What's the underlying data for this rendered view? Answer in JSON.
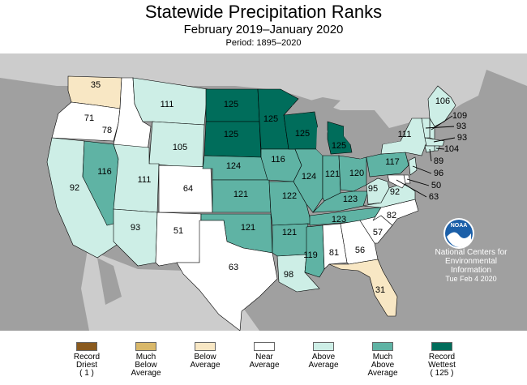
{
  "title": "Statewide Precipitation Ranks",
  "subtitle": "February 2019–January 2020",
  "period": "Period: 1895–2020",
  "credit": {
    "line1": "National Centers for",
    "line2": "Environmental",
    "line3": "Information",
    "date": "Tue Feb  4 2020",
    "logo_text": "NOAA",
    "logo_icon": "noaa-logo"
  },
  "colors": {
    "record_driest": "#8a5a1e",
    "much_below": "#d9b86a",
    "below": "#f8e7c4",
    "near": "#ffffff",
    "above": "#cdeee6",
    "much_above": "#5fb3a4",
    "record_wettest": "#006d5b",
    "ocean": "#a0a0a0",
    "land_outside": "#cccccc"
  },
  "legend": [
    {
      "line1": "Record",
      "line2": "Driest",
      "line3": "( 1 )",
      "color": "#8a5a1e"
    },
    {
      "line1": "Much",
      "line2": "Below",
      "line3": "Average",
      "color": "#d9b86a"
    },
    {
      "line1": "Below",
      "line2": "Average",
      "line3": "",
      "color": "#f8e7c4"
    },
    {
      "line1": "Near",
      "line2": "Average",
      "line3": "",
      "color": "#ffffff"
    },
    {
      "line1": "Above",
      "line2": "Average",
      "line3": "",
      "color": "#cdeee6"
    },
    {
      "line1": "Much",
      "line2": "Above",
      "line3": "Average",
      "color": "#5fb3a4"
    },
    {
      "line1": "Record",
      "line2": "Wettest",
      "line3": "( 125 )",
      "color": "#006d5b"
    }
  ],
  "ranks": {
    "WA": "35",
    "OR": "71",
    "ID": "78",
    "MT": "111",
    "WY": "105",
    "CA": "92",
    "NV": "116",
    "UT": "111",
    "CO": "64",
    "AZ": "93",
    "NM": "51",
    "ND": "125",
    "SD": "125",
    "NE": "124",
    "KS": "121",
    "OK": "121",
    "TX": "63",
    "MN": "125",
    "IA": "116",
    "MO": "122",
    "AR": "121",
    "LA": "98",
    "WI": "125",
    "IL": "124",
    "MI": "125",
    "IN": "121",
    "OH": "120",
    "KY": "123",
    "TN": "123",
    "MS": "119",
    "AL": "81",
    "GA": "56",
    "FL": "31",
    "SC": "57",
    "NC": "82",
    "VA": "92",
    "WV": "95",
    "PA": "117",
    "NY": "111",
    "ME": "106",
    "NH": "109",
    "VT": "93",
    "MA": "93",
    "RI": "104",
    "CT": "89",
    "NJ": "96",
    "DE": "50",
    "MD": "63"
  }
}
